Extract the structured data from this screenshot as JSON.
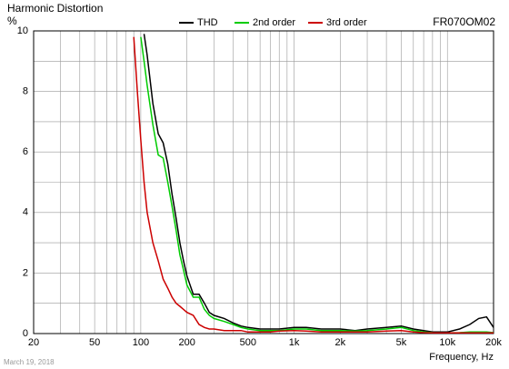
{
  "chart_data": {
    "type": "line",
    "title": "Harmonic Distortion",
    "y_label": "%",
    "x_label": "Frequency, Hz",
    "model": "FR070OM02",
    "date": "March 19, 2018",
    "x_log_scale": true,
    "grid": true,
    "legend_position": "top",
    "xlim": [
      20,
      20000
    ],
    "ylim": [
      0,
      10
    ],
    "xticks": [
      20,
      50,
      100,
      200,
      500,
      {
        "value": 1000,
        "label": "1k"
      },
      {
        "value": 2000,
        "label": "2k"
      },
      {
        "value": 5000,
        "label": "5k"
      },
      {
        "value": 10000,
        "label": "10k"
      },
      {
        "value": 20000,
        "label": "20k"
      }
    ],
    "x_minor_ticks": [
      30,
      40,
      60,
      70,
      80,
      90,
      300,
      400,
      600,
      700,
      800,
      900,
      3000,
      4000,
      6000,
      7000,
      8000,
      9000
    ],
    "yticks": [
      0,
      2,
      4,
      6,
      8,
      10
    ],
    "y_minor_ticks": [
      1,
      3,
      5,
      7,
      9
    ],
    "x": [
      90,
      95,
      100,
      105,
      110,
      120,
      130,
      140,
      150,
      160,
      170,
      180,
      190,
      200,
      220,
      240,
      260,
      280,
      300,
      350,
      400,
      450,
      500,
      600,
      700,
      800,
      1000,
      1200,
      1500,
      2000,
      2500,
      3000,
      4000,
      5000,
      6000,
      7000,
      8000,
      10000,
      12000,
      14000,
      16000,
      18000,
      20000
    ],
    "series": [
      {
        "name": "THD",
        "color": "#000000",
        "values": [
          null,
          null,
          null,
          9.9,
          9.2,
          7.6,
          6.6,
          6.3,
          5.6,
          4.6,
          3.8,
          3.0,
          2.4,
          1.9,
          1.3,
          1.3,
          1.0,
          0.7,
          0.6,
          0.5,
          0.35,
          0.25,
          0.2,
          0.15,
          0.15,
          0.15,
          0.2,
          0.2,
          0.15,
          0.15,
          0.1,
          0.15,
          0.2,
          0.25,
          0.15,
          0.1,
          0.05,
          0.05,
          0.15,
          0.3,
          0.5,
          0.55,
          0.2
        ]
      },
      {
        "name": "2nd order",
        "color": "#00cc00",
        "values": [
          null,
          null,
          9.8,
          9.0,
          8.2,
          6.9,
          5.9,
          5.8,
          5.0,
          4.2,
          3.4,
          2.6,
          2.1,
          1.6,
          1.2,
          1.2,
          0.8,
          0.6,
          0.5,
          0.4,
          0.3,
          0.2,
          0.15,
          0.1,
          0.1,
          0.1,
          0.15,
          0.15,
          0.1,
          0.1,
          0.08,
          0.1,
          0.15,
          0.2,
          0.1,
          0.05,
          0.03,
          0.02,
          0.03,
          0.05,
          0.05,
          0.05,
          0.03
        ]
      },
      {
        "name": "3rd order",
        "color": "#cc0000",
        "values": [
          9.8,
          8.0,
          6.4,
          5.0,
          4.0,
          3.0,
          2.4,
          1.8,
          1.5,
          1.2,
          1.0,
          0.9,
          0.8,
          0.7,
          0.6,
          0.3,
          0.2,
          0.15,
          0.15,
          0.1,
          0.1,
          0.1,
          0.05,
          0.05,
          0.05,
          0.08,
          0.1,
          0.08,
          0.05,
          0.05,
          0.05,
          0.05,
          0.08,
          0.1,
          0.05,
          0.03,
          0.02,
          0.02,
          0.02,
          0.02,
          0.02,
          0.02,
          0.02
        ]
      }
    ]
  }
}
